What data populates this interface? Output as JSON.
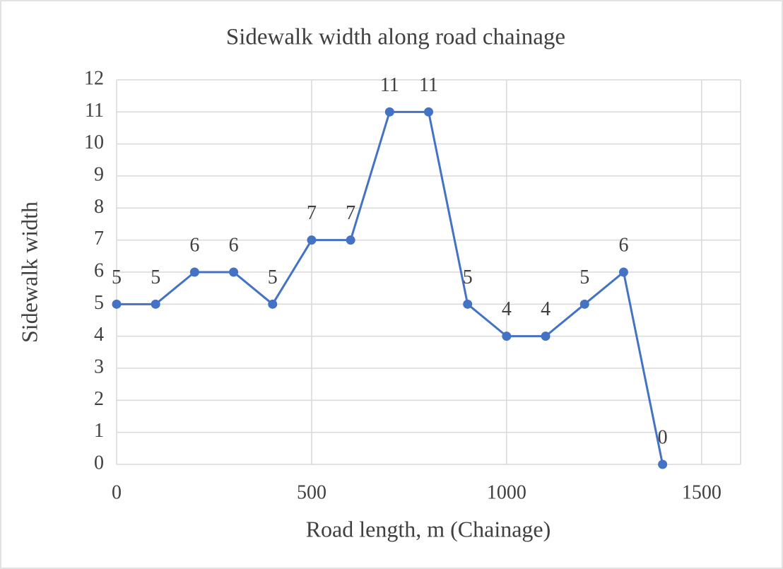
{
  "chart_data": {
    "type": "line",
    "title": "Sidewalk width along road chainage",
    "x_label": "Road length, m (Chainage)",
    "y_label": "Sidewalk width",
    "x": [
      0,
      100,
      200,
      300,
      400,
      500,
      600,
      700,
      800,
      900,
      1000,
      1100,
      1200,
      1300,
      1400
    ],
    "series": [
      {
        "name": "Sidewalk width",
        "color": "#4472c4",
        "values": [
          5,
          5,
          6,
          6,
          5,
          7,
          7,
          11,
          11,
          5,
          4,
          4,
          5,
          6,
          0
        ]
      }
    ],
    "xlim": [
      0,
      1600
    ],
    "xticks": [
      0,
      500,
      1000,
      1500
    ],
    "ylim": [
      0,
      12
    ],
    "yticks": [
      0,
      1,
      2,
      3,
      4,
      5,
      6,
      7,
      8,
      9,
      10,
      11,
      12
    ],
    "grid": true,
    "data_labels": true
  }
}
